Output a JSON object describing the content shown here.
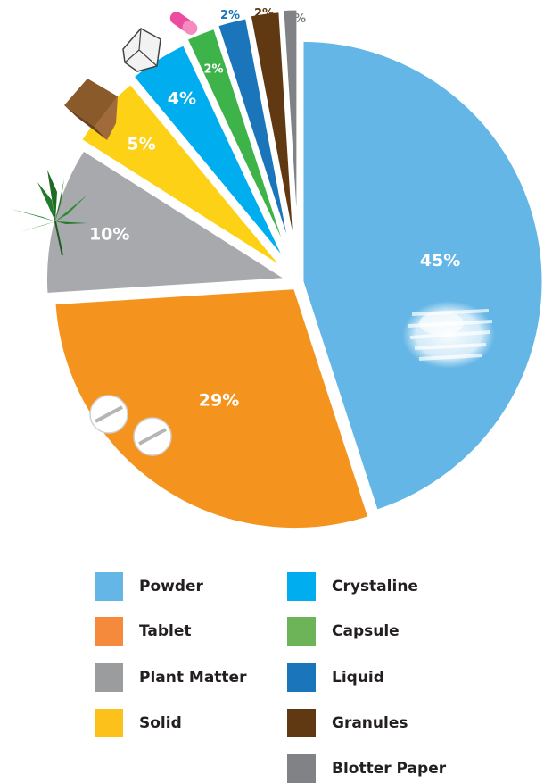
{
  "chart_data": {
    "type": "pie",
    "slices": [
      {
        "label": "Powder",
        "value": 45,
        "value_label": "45%",
        "color": "#64b6e6",
        "icon": "powder-pile-icon"
      },
      {
        "label": "Tablet",
        "value": 29,
        "value_label": "29%",
        "color": "#f5931f",
        "icon": "tablet-pills-icon"
      },
      {
        "label": "Plant Matter",
        "value": 10,
        "value_label": "10%",
        "color": "#a7a9ac",
        "icon": "cannabis-leaf-icon"
      },
      {
        "label": "Solid",
        "value": 5,
        "value_label": "5%",
        "color": "#fcd116",
        "icon": "brown-cube-icon"
      },
      {
        "label": "Crystaline",
        "value": 4,
        "value_label": "4%",
        "color": "#00aeef",
        "icon": "crystal-icon"
      },
      {
        "label": "Capsule",
        "value": 2,
        "value_label": "2%",
        "color": "#3db34a",
        "icon": "capsule-icon"
      },
      {
        "label": "Liquid",
        "value": 2,
        "value_label": "2%",
        "color": "#1b75bb",
        "icon": null
      },
      {
        "label": "Granules",
        "value": 2,
        "value_label": "2%",
        "color": "#603913",
        "icon": null
      },
      {
        "label": "Blotter Paper",
        "value": 1,
        "value_label": "1%",
        "color": "#808285",
        "icon": null
      }
    ],
    "legend": {
      "placement": "bottom",
      "columns": [
        [
          "Powder",
          "Tablet",
          "Plant Matter",
          "Solid"
        ],
        [
          "Crystaline",
          "Capsule",
          "Liquid",
          "Granules",
          "Blotter Paper"
        ]
      ]
    }
  }
}
